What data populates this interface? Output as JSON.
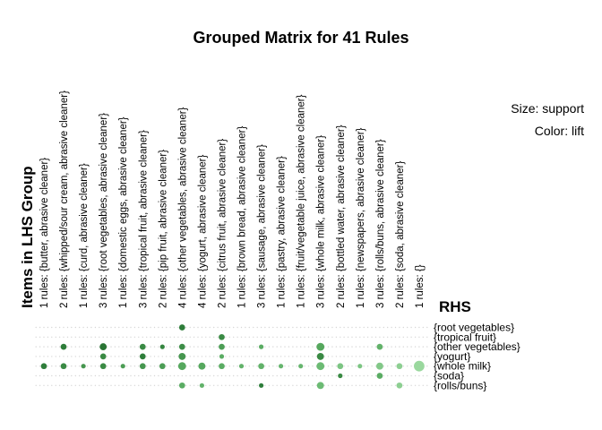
{
  "chart_data": {
    "type": "scatter",
    "title": "Grouped Matrix for 41 Rules",
    "xlabel": "Items in LHS Group",
    "ylabel": "RHS",
    "legend": {
      "size_label": "Size: support",
      "color_label": "Color: lift"
    },
    "lhs_groups": [
      "1 rules: {butter, abrasive cleaner}",
      "2 rules: {whipped/sour cream, abrasive cleaner}",
      "1 rules: {curd, abrasive cleaner}",
      "3 rules: {root vegetables, abrasive cleaner}",
      "1 rules: {domestic eggs, abrasive cleaner}",
      "3 rules: {tropical fruit, abrasive cleaner}",
      "2 rules: {pip fruit, abrasive cleaner}",
      "4 rules: {other vegetables, abrasive cleaner}",
      "4 rules: {yogurt, abrasive cleaner}",
      "2 rules: {citrus fruit, abrasive cleaner}",
      "1 rules: {brown bread, abrasive cleaner}",
      "3 rules: {sausage, abrasive cleaner}",
      "1 rules: {pastry, abrasive cleaner}",
      "1 rules: {fruit/vegetable juice, abrasive cleaner}",
      "3 rules: {whole milk, abrasive cleaner}",
      "2 rules: {bottled water, abrasive cleaner}",
      "1 rules: {newspapers, abrasive cleaner}",
      "3 rules: {rolls/buns, abrasive cleaner}",
      "2 rules: {soda, abrasive cleaner}",
      "1 rules: {}"
    ],
    "rhs_items": [
      "{root vegetables}",
      "{tropical fruit}",
      "{other vegetables}",
      "{yogurt}",
      "{whole milk}",
      "{soda}",
      "{rolls/buns}"
    ],
    "points": [
      {
        "lhs": 7,
        "rhs": 0,
        "size": 2,
        "color": "#2e7d3a"
      },
      {
        "lhs": 9,
        "rhs": 1,
        "size": 2,
        "color": "#3a8a44"
      },
      {
        "lhs": 1,
        "rhs": 2,
        "size": 2,
        "color": "#2e7d3a"
      },
      {
        "lhs": 3,
        "rhs": 2,
        "size": 3,
        "color": "#2a7534"
      },
      {
        "lhs": 5,
        "rhs": 2,
        "size": 2,
        "color": "#3a8a44"
      },
      {
        "lhs": 6,
        "rhs": 2,
        "size": 1,
        "color": "#358540"
      },
      {
        "lhs": 7,
        "rhs": 2,
        "size": 2,
        "color": "#3d8d47"
      },
      {
        "lhs": 9,
        "rhs": 2,
        "size": 2,
        "color": "#4c9d55"
      },
      {
        "lhs": 11,
        "rhs": 2,
        "size": 1,
        "color": "#5aac63"
      },
      {
        "lhs": 14,
        "rhs": 2,
        "size": 4,
        "color": "#56a85e"
      },
      {
        "lhs": 17,
        "rhs": 2,
        "size": 2,
        "color": "#62b26a"
      },
      {
        "lhs": 3,
        "rhs": 3,
        "size": 2,
        "color": "#3a8a44"
      },
      {
        "lhs": 5,
        "rhs": 3,
        "size": 2,
        "color": "#2e7d3a"
      },
      {
        "lhs": 7,
        "rhs": 3,
        "size": 3,
        "color": "#46964f"
      },
      {
        "lhs": 9,
        "rhs": 3,
        "size": 1,
        "color": "#5aac63"
      },
      {
        "lhs": 14,
        "rhs": 3,
        "size": 3,
        "color": "#3a8a44"
      },
      {
        "lhs": 0,
        "rhs": 4,
        "size": 2,
        "color": "#2e7d3a"
      },
      {
        "lhs": 1,
        "rhs": 4,
        "size": 2,
        "color": "#3a8a44"
      },
      {
        "lhs": 2,
        "rhs": 4,
        "size": 1,
        "color": "#46964f"
      },
      {
        "lhs": 3,
        "rhs": 4,
        "size": 2,
        "color": "#3a8a44"
      },
      {
        "lhs": 4,
        "rhs": 4,
        "size": 1,
        "color": "#4c9d55"
      },
      {
        "lhs": 5,
        "rhs": 4,
        "size": 2,
        "color": "#46964f"
      },
      {
        "lhs": 6,
        "rhs": 4,
        "size": 2,
        "color": "#4c9d55"
      },
      {
        "lhs": 7,
        "rhs": 4,
        "size": 4,
        "color": "#56a85e"
      },
      {
        "lhs": 8,
        "rhs": 4,
        "size": 3,
        "color": "#56a85e"
      },
      {
        "lhs": 9,
        "rhs": 4,
        "size": 2,
        "color": "#5aac63"
      },
      {
        "lhs": 10,
        "rhs": 4,
        "size": 1,
        "color": "#62b26a"
      },
      {
        "lhs": 11,
        "rhs": 4,
        "size": 2,
        "color": "#62b26a"
      },
      {
        "lhs": 12,
        "rhs": 4,
        "size": 1,
        "color": "#66b56e"
      },
      {
        "lhs": 13,
        "rhs": 4,
        "size": 1,
        "color": "#66b56e"
      },
      {
        "lhs": 14,
        "rhs": 4,
        "size": 4,
        "color": "#6cbb74"
      },
      {
        "lhs": 15,
        "rhs": 4,
        "size": 2,
        "color": "#7cc583"
      },
      {
        "lhs": 16,
        "rhs": 4,
        "size": 1,
        "color": "#7cc583"
      },
      {
        "lhs": 17,
        "rhs": 4,
        "size": 3,
        "color": "#82c888"
      },
      {
        "lhs": 18,
        "rhs": 4,
        "size": 2,
        "color": "#8dcf92"
      },
      {
        "lhs": 19,
        "rhs": 4,
        "size": 8,
        "color": "#9ad89e"
      },
      {
        "lhs": 15,
        "rhs": 5,
        "size": 1,
        "color": "#3a8a44"
      },
      {
        "lhs": 17,
        "rhs": 5,
        "size": 2,
        "color": "#5aac63"
      },
      {
        "lhs": 7,
        "rhs": 6,
        "size": 2,
        "color": "#5aac63"
      },
      {
        "lhs": 8,
        "rhs": 6,
        "size": 1,
        "color": "#62b26a"
      },
      {
        "lhs": 11,
        "rhs": 6,
        "size": 1,
        "color": "#2e7d3a"
      },
      {
        "lhs": 14,
        "rhs": 6,
        "size": 3,
        "color": "#6cbb74"
      },
      {
        "lhs": 18,
        "rhs": 6,
        "size": 2,
        "color": "#8dcf92"
      }
    ]
  }
}
